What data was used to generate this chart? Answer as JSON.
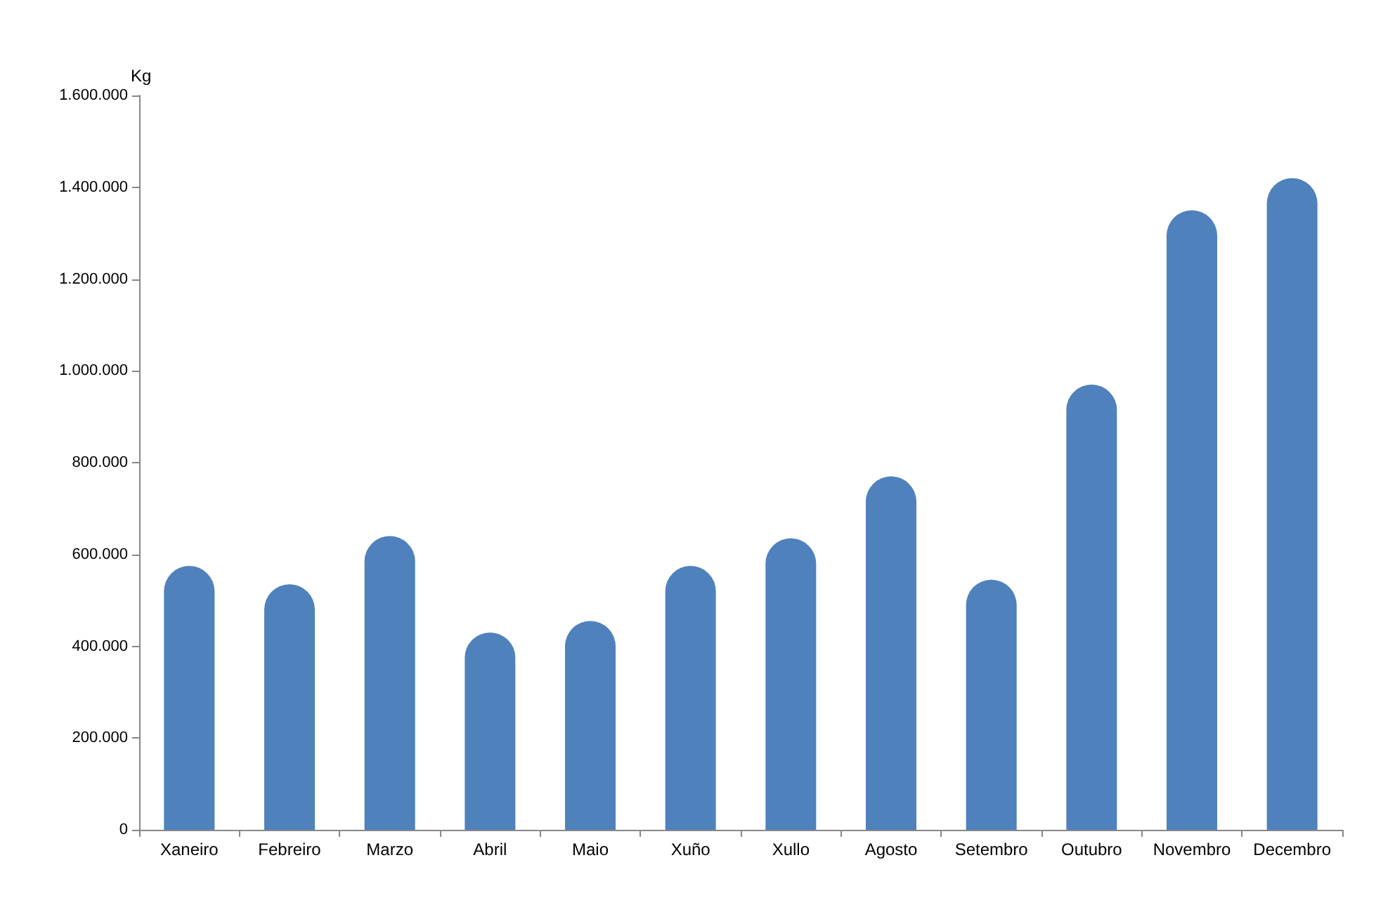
{
  "chart_data": {
    "type": "bar",
    "ylabel": "Kg",
    "categories": [
      "Xaneiro",
      "Febreiro",
      "Marzo",
      "Abril",
      "Maio",
      "Xuño",
      "Xullo",
      "Agosto",
      "Setembro",
      "Outubro",
      "Novembro",
      "Decembro"
    ],
    "values": [
      575000,
      535000,
      640000,
      430000,
      455000,
      575000,
      635000,
      770000,
      545000,
      970000,
      1350000,
      1420000
    ],
    "color": "#4f81bd",
    "ylim": [
      0,
      1600000
    ],
    "yticks": [
      0,
      {
        "value": 200000,
        "label": "200.000"
      },
      {
        "value": 400000,
        "label": "400.000"
      },
      {
        "value": 600000,
        "label": "600.000"
      },
      {
        "value": 800000,
        "label": "800.000"
      },
      {
        "value": 1000000,
        "label": "1.000.000"
      },
      {
        "value": 1200000,
        "label": "1.200.000"
      },
      {
        "value": 1400000,
        "label": "1.400.000"
      },
      {
        "value": 1600000,
        "label": "1.600.000"
      }
    ],
    "grid": false
  }
}
